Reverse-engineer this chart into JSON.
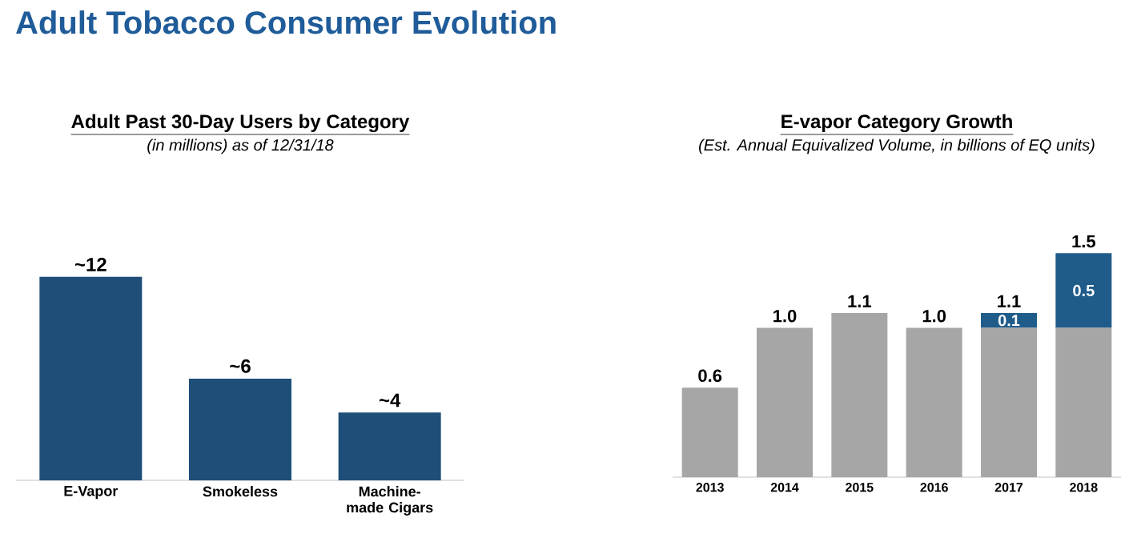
{
  "chart_data": [
    {
      "type": "bar",
      "title": "Adult Past 30-Day Users by Category",
      "subtitle": "(in millions) as of 12/31/18",
      "annotations": [
        "Adult Tobacco Consumer Evolution"
      ],
      "categories": [
        "E-Vapor",
        "Smokeless",
        "Machine-made Cigars"
      ],
      "values": [
        12,
        6,
        4
      ],
      "value_labels": [
        "~12",
        "~6",
        "~4"
      ],
      "color": "#1f4e79"
    },
    {
      "type": "bar",
      "stacked": true,
      "title": "E-vapor Category Growth",
      "subtitle": "(Est. Annual Equivalized Volume, in billions of EQ units)",
      "categories": [
        "2013",
        "2014",
        "2015",
        "2016",
        "2017",
        "2018"
      ],
      "series": [
        {
          "color": "#a6a6a6",
          "values": [
            0.6,
            1.0,
            1.1,
            1.0,
            1.0,
            1.0
          ]
        },
        {
          "color": "#1f5c8a",
          "values": [
            null,
            null,
            null,
            null,
            0.1,
            0.5
          ],
          "value_labels": [
            null,
            null,
            null,
            null,
            "0.1",
            "0.5"
          ]
        }
      ],
      "totals": [
        "0.6",
        "1.0",
        "1.1",
        "1.0",
        "1.1",
        "1.5"
      ]
    }
  ]
}
